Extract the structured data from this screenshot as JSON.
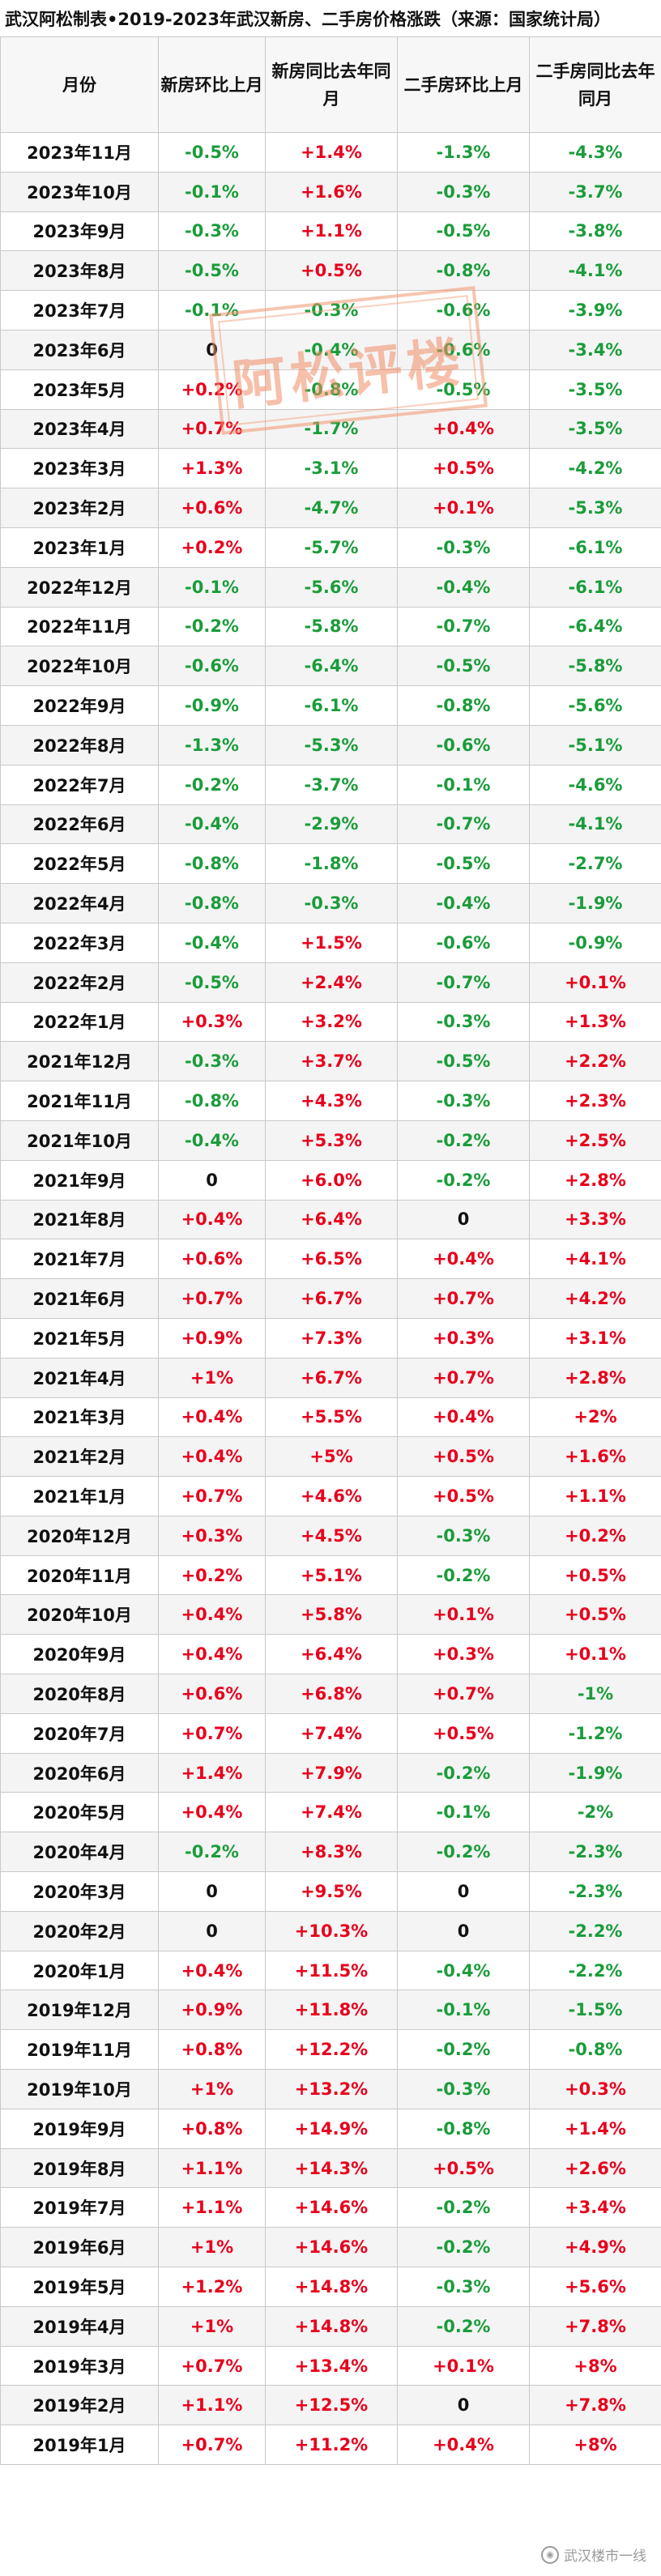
{
  "title": "武汉阿松制表•2019-2023年武汉新房、二手房价格涨跌（来源：国家统计局）",
  "colors": {
    "up": "#e8001c",
    "down": "#1a9c3a",
    "zero": "#111111"
  },
  "table": {
    "headers": [
      "月份",
      "新房环比上月",
      "新房同比去年同月",
      "二手房环比上月",
      "二手房同比去年同月"
    ],
    "rows": [
      [
        "2023年11月",
        "-0.5%",
        "+1.4%",
        "-1.3%",
        "-4.3%"
      ],
      [
        "2023年10月",
        "-0.1%",
        "+1.6%",
        "-0.3%",
        "-3.7%"
      ],
      [
        "2023年9月",
        "-0.3%",
        "+1.1%",
        "-0.5%",
        "-3.8%"
      ],
      [
        "2023年8月",
        "-0.5%",
        "+0.5%",
        "-0.8%",
        "-4.1%"
      ],
      [
        "2023年7月",
        "-0.1%",
        "-0.3%",
        "-0.6%",
        "-3.9%"
      ],
      [
        "2023年6月",
        "0",
        "-0.4%",
        "-0.6%",
        "-3.4%"
      ],
      [
        "2023年5月",
        "+0.2%",
        "-0.8%",
        "-0.5%",
        "-3.5%"
      ],
      [
        "2023年4月",
        "+0.7%",
        "-1.7%",
        "+0.4%",
        "-3.5%"
      ],
      [
        "2023年3月",
        "+1.3%",
        "-3.1%",
        "+0.5%",
        "-4.2%"
      ],
      [
        "2023年2月",
        "+0.6%",
        "-4.7%",
        "+0.1%",
        "-5.3%"
      ],
      [
        "2023年1月",
        "+0.2%",
        "-5.7%",
        "-0.3%",
        "-6.1%"
      ],
      [
        "2022年12月",
        "-0.1%",
        "-5.6%",
        "-0.4%",
        "-6.1%"
      ],
      [
        "2022年11月",
        "-0.2%",
        "-5.8%",
        "-0.7%",
        "-6.4%"
      ],
      [
        "2022年10月",
        "-0.6%",
        "-6.4%",
        "-0.5%",
        "-5.8%"
      ],
      [
        "2022年9月",
        "-0.9%",
        "-6.1%",
        "-0.8%",
        "-5.6%"
      ],
      [
        "2022年8月",
        "-1.3%",
        "-5.3%",
        "-0.6%",
        "-5.1%"
      ],
      [
        "2022年7月",
        "-0.2%",
        "-3.7%",
        "-0.1%",
        "-4.6%"
      ],
      [
        "2022年6月",
        "-0.4%",
        "-2.9%",
        "-0.7%",
        "-4.1%"
      ],
      [
        "2022年5月",
        "-0.8%",
        "-1.8%",
        "-0.5%",
        "-2.7%"
      ],
      [
        "2022年4月",
        "-0.8%",
        "-0.3%",
        "-0.4%",
        "-1.9%"
      ],
      [
        "2022年3月",
        "-0.4%",
        "+1.5%",
        "-0.6%",
        "-0.9%"
      ],
      [
        "2022年2月",
        "-0.5%",
        "+2.4%",
        "-0.7%",
        "+0.1%"
      ],
      [
        "2022年1月",
        "+0.3%",
        "+3.2%",
        "-0.3%",
        "+1.3%"
      ],
      [
        "2021年12月",
        "-0.3%",
        "+3.7%",
        "-0.5%",
        "+2.2%"
      ],
      [
        "2021年11月",
        "-0.8%",
        "+4.3%",
        "-0.3%",
        "+2.3%"
      ],
      [
        "2021年10月",
        "-0.4%",
        "+5.3%",
        "-0.2%",
        "+2.5%"
      ],
      [
        "2021年9月",
        "0",
        "+6.0%",
        "-0.2%",
        "+2.8%"
      ],
      [
        "2021年8月",
        "+0.4%",
        "+6.4%",
        "0",
        "+3.3%"
      ],
      [
        "2021年7月",
        "+0.6%",
        "+6.5%",
        "+0.4%",
        "+4.1%"
      ],
      [
        "2021年6月",
        "+0.7%",
        "+6.7%",
        "+0.7%",
        "+4.2%"
      ],
      [
        "2021年5月",
        "+0.9%",
        "+7.3%",
        "+0.3%",
        "+3.1%"
      ],
      [
        "2021年4月",
        "+1%",
        "+6.7%",
        "+0.7%",
        "+2.8%"
      ],
      [
        "2021年3月",
        "+0.4%",
        "+5.5%",
        "+0.4%",
        "+2%"
      ],
      [
        "2021年2月",
        "+0.4%",
        "+5%",
        "+0.5%",
        "+1.6%"
      ],
      [
        "2021年1月",
        "+0.7%",
        "+4.6%",
        "+0.5%",
        "+1.1%"
      ],
      [
        "2020年12月",
        "+0.3%",
        "+4.5%",
        "-0.3%",
        "+0.2%"
      ],
      [
        "2020年11月",
        "+0.2%",
        "+5.1%",
        "-0.2%",
        "+0.5%"
      ],
      [
        "2020年10月",
        "+0.4%",
        "+5.8%",
        "+0.1%",
        "+0.5%"
      ],
      [
        "2020年9月",
        "+0.4%",
        "+6.4%",
        "+0.3%",
        "+0.1%"
      ],
      [
        "2020年8月",
        "+0.6%",
        "+6.8%",
        "+0.7%",
        "-1%"
      ],
      [
        "2020年7月",
        "+0.7%",
        "+7.4%",
        "+0.5%",
        "-1.2%"
      ],
      [
        "2020年6月",
        "+1.4%",
        "+7.9%",
        "-0.2%",
        "-1.9%"
      ],
      [
        "2020年5月",
        "+0.4%",
        "+7.4%",
        "-0.1%",
        "-2%"
      ],
      [
        "2020年4月",
        "-0.2%",
        "+8.3%",
        "-0.2%",
        "-2.3%"
      ],
      [
        "2020年3月",
        "0",
        "+9.5%",
        "0",
        "-2.3%"
      ],
      [
        "2020年2月",
        "0",
        "+10.3%",
        "0",
        "-2.2%"
      ],
      [
        "2020年1月",
        "+0.4%",
        "+11.5%",
        "-0.4%",
        "-2.2%"
      ],
      [
        "2019年12月",
        "+0.9%",
        "+11.8%",
        "-0.1%",
        "-1.5%"
      ],
      [
        "2019年11月",
        "+0.8%",
        "+12.2%",
        "-0.2%",
        "-0.8%"
      ],
      [
        "2019年10月",
        "+1%",
        "+13.2%",
        "-0.3%",
        "+0.3%"
      ],
      [
        "2019年9月",
        "+0.8%",
        "+14.9%",
        "-0.8%",
        "+1.4%"
      ],
      [
        "2019年8月",
        "+1.1%",
        "+14.3%",
        "+0.5%",
        "+2.6%"
      ],
      [
        "2019年7月",
        "+1.1%",
        "+14.6%",
        "-0.2%",
        "+3.4%"
      ],
      [
        "2019年6月",
        "+1%",
        "+14.6%",
        "-0.2%",
        "+4.9%"
      ],
      [
        "2019年5月",
        "+1.2%",
        "+14.8%",
        "-0.3%",
        "+5.6%"
      ],
      [
        "2019年4月",
        "+1%",
        "+14.8%",
        "-0.2%",
        "+7.8%"
      ],
      [
        "2019年3月",
        "+0.7%",
        "+13.4%",
        "+0.1%",
        "+8%"
      ],
      [
        "2019年2月",
        "+1.1%",
        "+12.5%",
        "0",
        "+7.8%"
      ],
      [
        "2019年1月",
        "+0.7%",
        "+11.2%",
        "+0.4%",
        "+8%"
      ]
    ]
  },
  "watermark": {
    "text": "阿松评楼"
  },
  "footer": {
    "icon": "wechat-icon",
    "text": "武汉楼市一线"
  }
}
